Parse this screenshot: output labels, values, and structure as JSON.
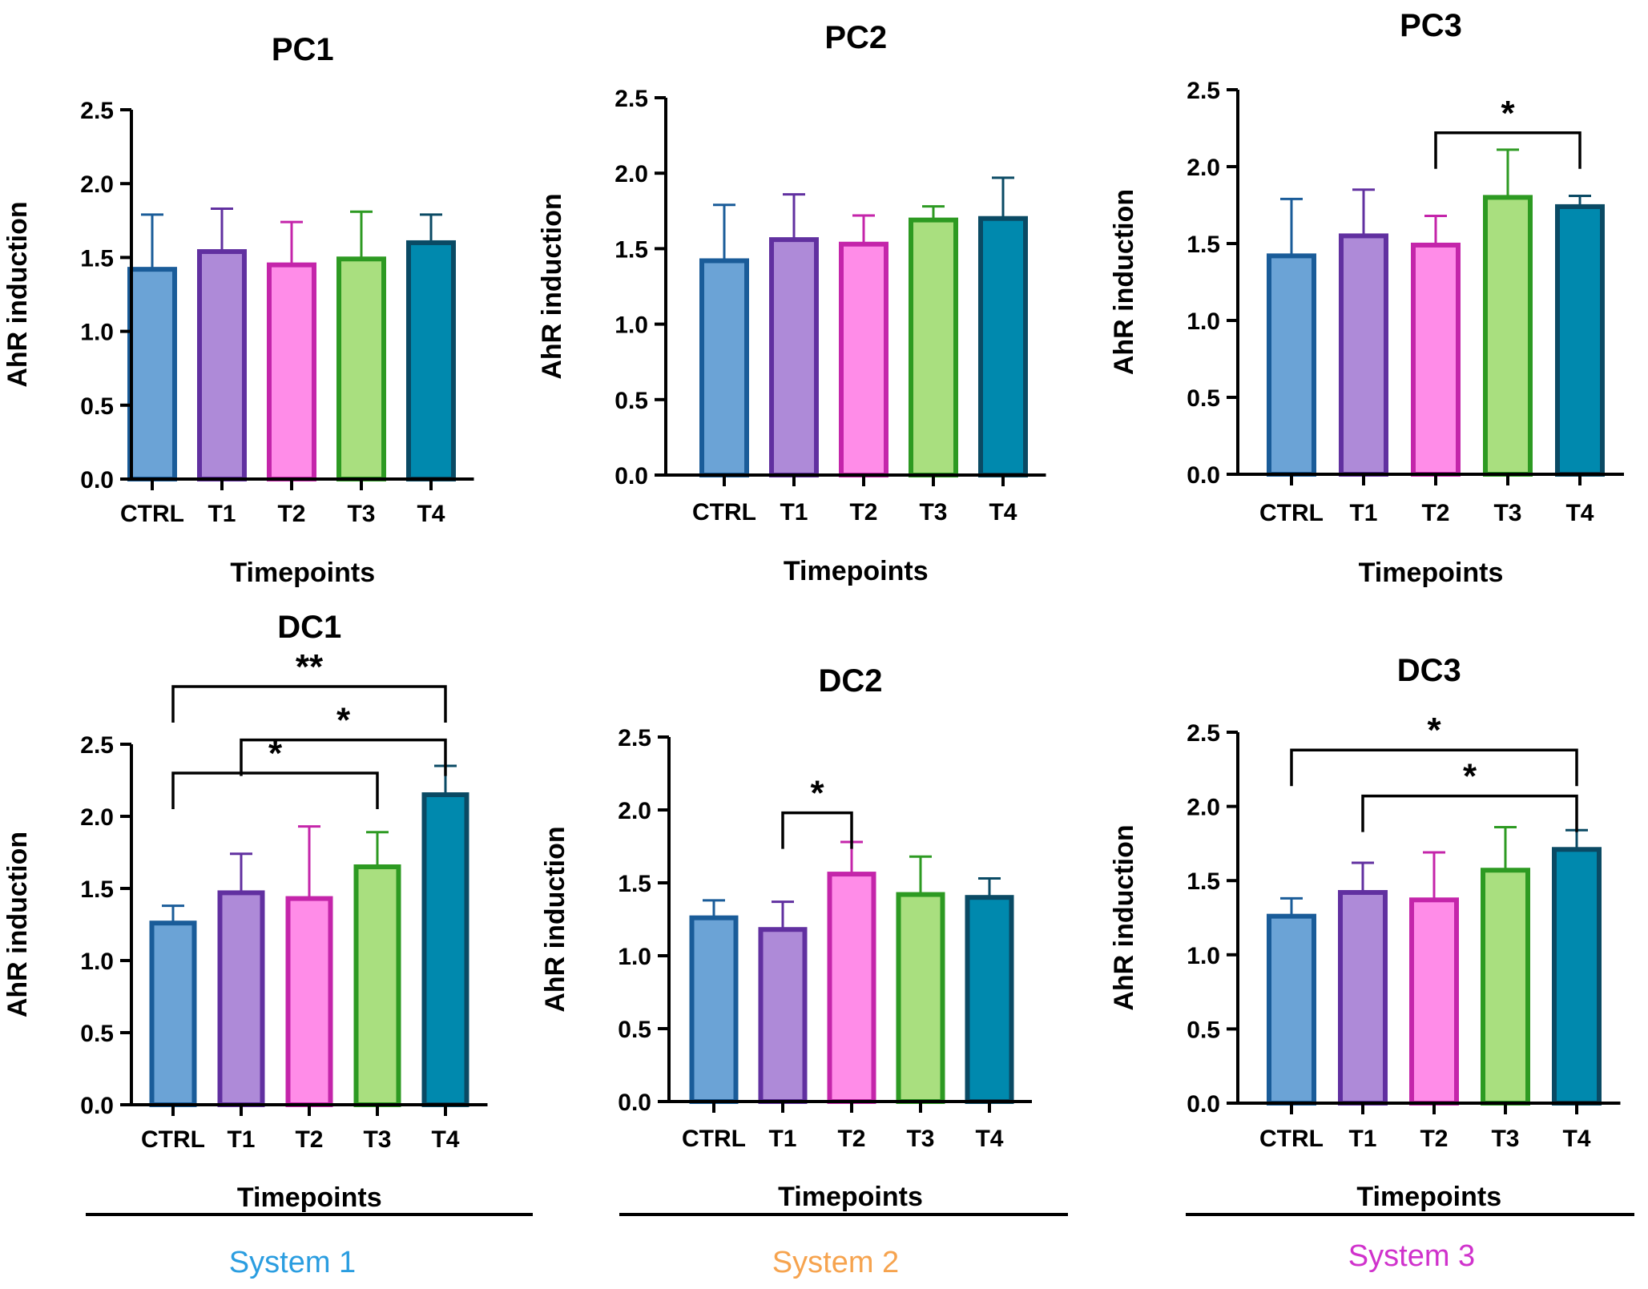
{
  "chart_data": [
    {
      "type": "bar",
      "title": "PC1",
      "xlabel": "Timepoints",
      "ylabel": "AhR induction",
      "ylim": [
        0,
        2.5
      ],
      "yticks": [
        "0.0",
        "0.5",
        "1.0",
        "1.5",
        "2.0",
        "2.5"
      ],
      "categories": [
        "CTRL",
        "T1",
        "T2",
        "T3",
        "T4"
      ],
      "values": [
        1.42,
        1.54,
        1.45,
        1.49,
        1.6
      ],
      "errors": [
        0.37,
        0.29,
        0.29,
        0.32,
        0.19
      ],
      "significance": []
    },
    {
      "type": "bar",
      "title": "PC2",
      "xlabel": "Timepoints",
      "ylabel": "AhR induction",
      "ylim": [
        0,
        2.5
      ],
      "yticks": [
        "0.0",
        "0.5",
        "1.0",
        "1.5",
        "2.0",
        "2.5"
      ],
      "categories": [
        "CTRL",
        "T1",
        "T2",
        "T3",
        "T4"
      ],
      "values": [
        1.42,
        1.56,
        1.53,
        1.69,
        1.7
      ],
      "errors": [
        0.37,
        0.3,
        0.19,
        0.09,
        0.27
      ],
      "significance": []
    },
    {
      "type": "bar",
      "title": "PC3",
      "xlabel": "Timepoints",
      "ylabel": "AhR induction",
      "ylim": [
        0,
        2.5
      ],
      "yticks": [
        "0.0",
        "0.5",
        "1.0",
        "1.5",
        "2.0",
        "2.5"
      ],
      "categories": [
        "CTRL",
        "T1",
        "T2",
        "T3",
        "T4"
      ],
      "values": [
        1.42,
        1.55,
        1.49,
        1.8,
        1.74
      ],
      "errors": [
        0.37,
        0.3,
        0.19,
        0.31,
        0.07
      ],
      "significance": [
        {
          "from": 2,
          "to": 4,
          "label": "*",
          "level": 2.22
        }
      ]
    },
    {
      "type": "bar",
      "title": "DC1",
      "xlabel": "Timepoints",
      "ylabel": "AhR induction",
      "ylim": [
        0,
        2.5
      ],
      "yticks": [
        "0.0",
        "0.5",
        "1.0",
        "1.5",
        "2.0",
        "2.5"
      ],
      "categories": [
        "CTRL",
        "T1",
        "T2",
        "T3",
        "T4"
      ],
      "values": [
        1.26,
        1.47,
        1.43,
        1.65,
        2.15
      ],
      "errors": [
        0.12,
        0.27,
        0.5,
        0.24,
        0.2
      ],
      "significance": [
        {
          "from": 0,
          "to": 3,
          "label": "*",
          "level": 2.3
        },
        {
          "from": 1,
          "to": 4,
          "label": "*",
          "level": 2.53
        },
        {
          "from": 0,
          "to": 4,
          "label": "**",
          "level": 2.9
        }
      ]
    },
    {
      "type": "bar",
      "title": "DC2",
      "xlabel": "Timepoints",
      "ylabel": "AhR induction",
      "ylim": [
        0,
        2.5
      ],
      "yticks": [
        "0.0",
        "0.5",
        "1.0",
        "1.5",
        "2.0",
        "2.5"
      ],
      "categories": [
        "CTRL",
        "T1",
        "T2",
        "T3",
        "T4"
      ],
      "values": [
        1.26,
        1.18,
        1.56,
        1.42,
        1.4
      ],
      "errors": [
        0.12,
        0.19,
        0.22,
        0.26,
        0.13
      ],
      "significance": [
        {
          "from": 1,
          "to": 2,
          "label": "*",
          "level": 1.98
        }
      ]
    },
    {
      "type": "bar",
      "title": "DC3",
      "xlabel": "Timepoints",
      "ylabel": "AhR induction",
      "ylim": [
        0,
        2.5
      ],
      "yticks": [
        "0.0",
        "0.5",
        "1.0",
        "1.5",
        "2.0",
        "2.5"
      ],
      "categories": [
        "CTRL",
        "T1",
        "T2",
        "T3",
        "T4"
      ],
      "values": [
        1.26,
        1.42,
        1.37,
        1.57,
        1.71
      ],
      "errors": [
        0.12,
        0.2,
        0.32,
        0.29,
        0.13
      ],
      "significance": [
        {
          "from": 1,
          "to": 4,
          "label": "*",
          "level": 2.07
        },
        {
          "from": 0,
          "to": 4,
          "label": "*",
          "level": 2.38
        }
      ]
    }
  ],
  "colors": {
    "fills": [
      "#6ba3d6",
      "#ae8ad8",
      "#ff8ce8",
      "#a9df7f",
      "#0089ae"
    ],
    "edges": [
      "#1a5c99",
      "#6130a0",
      "#c425aa",
      "#2d9a22",
      "#0a4a64"
    ]
  },
  "systems": [
    {
      "label": "System 1",
      "color": "#2a9de0"
    },
    {
      "label": "System 2",
      "color": "#f6a34e"
    },
    {
      "label": "System 3",
      "color": "#d032cc"
    }
  ]
}
